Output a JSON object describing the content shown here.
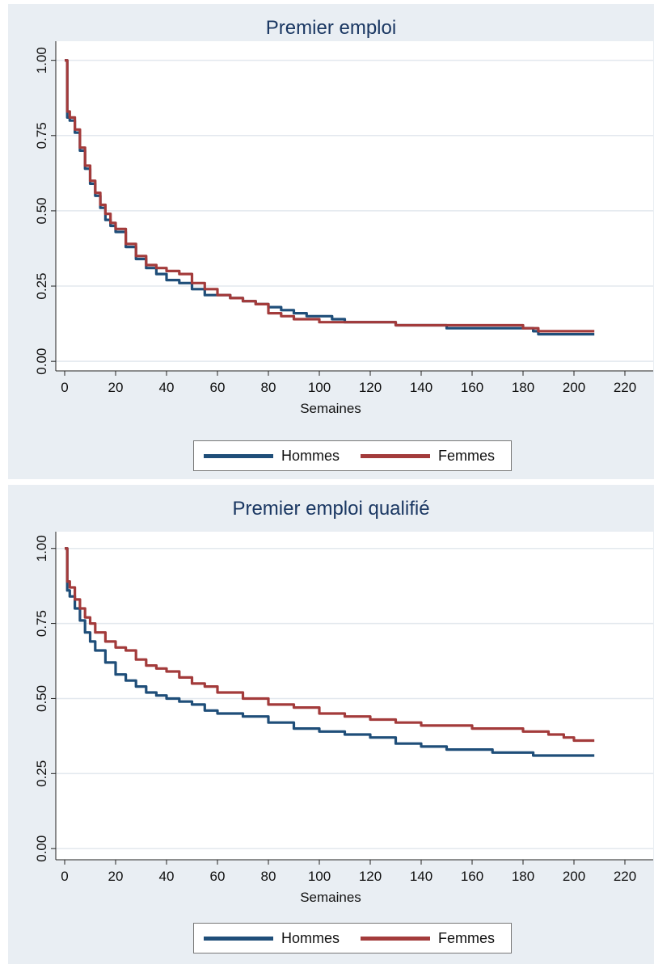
{
  "colors": {
    "panel_bg": "#e9eef3",
    "plot_bg": "#ffffff",
    "grid": "#e3e8ee",
    "axis": "#222222",
    "title": "#1a3762",
    "hommes": "#1f4e79",
    "femmes": "#a33b3b"
  },
  "chart_data": [
    {
      "type": "line",
      "title": "Premier emploi",
      "xlabel": "Semaines",
      "ylabel": "",
      "xlim": [
        0,
        220
      ],
      "ylim": [
        0,
        1
      ],
      "x_ticks": [
        "0",
        "20",
        "40",
        "60",
        "80",
        "100",
        "120",
        "140",
        "160",
        "180",
        "200",
        "220"
      ],
      "y_ticks": [
        "0.00",
        "0.25",
        "0.50",
        "0.75",
        "1.00"
      ],
      "grid": true,
      "legend_position": "bottom",
      "series": [
        {
          "name": "Hommes",
          "color": "#1f4e79",
          "x": [
            0,
            1,
            2,
            4,
            6,
            8,
            10,
            12,
            14,
            16,
            18,
            20,
            24,
            28,
            32,
            36,
            40,
            45,
            50,
            55,
            60,
            65,
            70,
            75,
            80,
            85,
            90,
            95,
            100,
            105,
            110,
            120,
            130,
            140,
            150,
            160,
            170,
            180,
            184,
            186,
            190,
            200,
            208
          ],
          "y": [
            1.0,
            0.81,
            0.8,
            0.76,
            0.7,
            0.64,
            0.59,
            0.55,
            0.51,
            0.47,
            0.45,
            0.43,
            0.38,
            0.34,
            0.31,
            0.29,
            0.27,
            0.26,
            0.24,
            0.22,
            0.22,
            0.21,
            0.2,
            0.19,
            0.18,
            0.17,
            0.16,
            0.15,
            0.15,
            0.14,
            0.13,
            0.13,
            0.12,
            0.12,
            0.11,
            0.11,
            0.11,
            0.11,
            0.1,
            0.09,
            0.09,
            0.09,
            0.09
          ]
        },
        {
          "name": "Femmes",
          "color": "#a33b3b",
          "x": [
            0,
            1,
            2,
            4,
            6,
            8,
            10,
            12,
            14,
            16,
            18,
            20,
            24,
            28,
            32,
            36,
            40,
            45,
            50,
            55,
            60,
            65,
            70,
            75,
            80,
            85,
            90,
            95,
            100,
            105,
            110,
            120,
            130,
            140,
            150,
            160,
            170,
            180,
            184,
            186,
            190,
            200,
            208
          ],
          "y": [
            1.0,
            0.83,
            0.81,
            0.77,
            0.71,
            0.65,
            0.6,
            0.56,
            0.52,
            0.49,
            0.46,
            0.44,
            0.39,
            0.35,
            0.32,
            0.31,
            0.3,
            0.29,
            0.26,
            0.24,
            0.22,
            0.21,
            0.2,
            0.19,
            0.16,
            0.15,
            0.14,
            0.14,
            0.13,
            0.13,
            0.13,
            0.13,
            0.12,
            0.12,
            0.12,
            0.12,
            0.12,
            0.11,
            0.11,
            0.1,
            0.1,
            0.1,
            0.1
          ]
        }
      ],
      "legend": [
        "Hommes",
        "Femmes"
      ]
    },
    {
      "type": "line",
      "title": "Premier emploi qualifié",
      "xlabel": "Semaines",
      "ylabel": "",
      "xlim": [
        0,
        220
      ],
      "ylim": [
        0,
        1
      ],
      "x_ticks": [
        "0",
        "20",
        "40",
        "60",
        "80",
        "100",
        "120",
        "140",
        "160",
        "180",
        "200",
        "220"
      ],
      "y_ticks": [
        "0.00",
        "0.25",
        "0.50",
        "0.75",
        "1.00"
      ],
      "grid": true,
      "legend_position": "bottom",
      "series": [
        {
          "name": "Hommes",
          "color": "#1f4e79",
          "x": [
            0,
            1,
            2,
            4,
            6,
            8,
            10,
            12,
            16,
            20,
            24,
            28,
            32,
            36,
            40,
            45,
            50,
            55,
            60,
            70,
            80,
            90,
            100,
            110,
            120,
            130,
            140,
            150,
            160,
            168,
            176,
            184,
            190,
            200,
            208
          ],
          "y": [
            1.0,
            0.86,
            0.84,
            0.8,
            0.76,
            0.72,
            0.69,
            0.66,
            0.62,
            0.58,
            0.56,
            0.54,
            0.52,
            0.51,
            0.5,
            0.49,
            0.48,
            0.46,
            0.45,
            0.44,
            0.42,
            0.4,
            0.39,
            0.38,
            0.37,
            0.35,
            0.34,
            0.33,
            0.33,
            0.32,
            0.32,
            0.31,
            0.31,
            0.31,
            0.31
          ]
        },
        {
          "name": "Femmes",
          "color": "#a33b3b",
          "x": [
            0,
            1,
            2,
            4,
            6,
            8,
            10,
            12,
            16,
            20,
            24,
            28,
            32,
            36,
            40,
            45,
            50,
            55,
            60,
            70,
            80,
            90,
            100,
            110,
            120,
            130,
            140,
            150,
            160,
            170,
            180,
            190,
            196,
            200,
            208
          ],
          "y": [
            1.0,
            0.89,
            0.87,
            0.83,
            0.8,
            0.77,
            0.75,
            0.72,
            0.69,
            0.67,
            0.66,
            0.63,
            0.61,
            0.6,
            0.59,
            0.57,
            0.55,
            0.54,
            0.52,
            0.5,
            0.48,
            0.47,
            0.45,
            0.44,
            0.43,
            0.42,
            0.41,
            0.41,
            0.4,
            0.4,
            0.39,
            0.38,
            0.37,
            0.36,
            0.36
          ]
        }
      ],
      "legend": [
        "Hommes",
        "Femmes"
      ]
    }
  ]
}
